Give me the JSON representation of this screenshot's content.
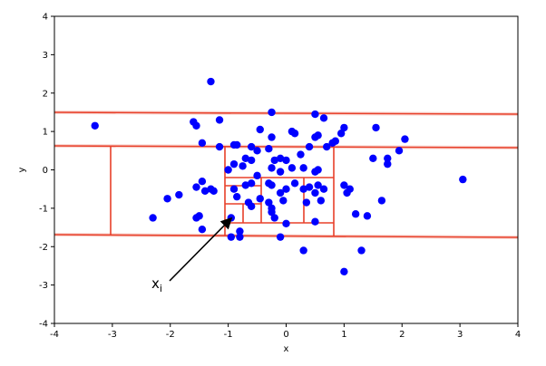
{
  "chart_data": {
    "type": "scatter",
    "x_label": "x",
    "y_label": "y",
    "annotation": {
      "text": "x",
      "subscript": "i"
    },
    "color": "#0000ff",
    "xlim": [
      -4,
      4
    ],
    "ylim": [
      -4,
      4
    ],
    "xticks": [
      -4,
      -3,
      -2,
      -1,
      0,
      1,
      2,
      3,
      4
    ],
    "yticks": [
      -4,
      -3,
      -2,
      -1,
      0,
      1,
      2,
      3,
      4
    ],
    "x": [
      -1.3,
      -3.3,
      -0.25,
      0.5,
      0.65,
      -1.6,
      -1.55,
      -1.15,
      1.0,
      0.95,
      1.55,
      -0.45,
      0.1,
      0.15,
      0.55,
      0.5,
      -0.25,
      0.85,
      0.8,
      2.05,
      1.95,
      -1.45,
      -1.15,
      -0.85,
      -0.9,
      -0.6,
      -0.3,
      -0.5,
      0.25,
      0.4,
      0.7,
      1.75,
      1.5,
      1.75,
      -0.7,
      -0.6,
      -0.9,
      -0.75,
      -0.2,
      -0.1,
      0.0,
      -0.25,
      -0.1,
      0.1,
      0.3,
      0.55,
      0.5,
      -1.0,
      -0.5,
      -1.45,
      -1.55,
      -1.3,
      -1.4,
      -1.25,
      -1.85,
      -2.05,
      -2.3,
      -1.5,
      -1.55,
      -1.45,
      -0.6,
      -0.7,
      -0.9,
      -0.25,
      -0.3,
      0.15,
      0.0,
      0.3,
      0.4,
      0.55,
      0.5,
      0.65,
      1.0,
      1.1,
      1.05,
      -0.85,
      -0.65,
      -0.45,
      -0.1,
      -0.05,
      -0.3,
      -0.25,
      -0.25,
      0.35,
      -0.6,
      -0.95,
      -0.2,
      0.0,
      0.5,
      1.65,
      1.2,
      1.4,
      -0.1,
      -0.95,
      -0.8,
      -0.8,
      0.3,
      1.3,
      1.0,
      3.05,
      0.6
    ],
    "y": [
      2.3,
      1.15,
      1.5,
      1.45,
      1.35,
      1.25,
      1.15,
      1.3,
      1.1,
      0.95,
      1.1,
      1.05,
      1.0,
      0.95,
      0.9,
      0.85,
      0.85,
      0.75,
      0.7,
      0.8,
      0.5,
      0.7,
      0.6,
      0.65,
      0.65,
      0.6,
      0.55,
      0.5,
      0.4,
      0.6,
      0.6,
      0.3,
      0.3,
      0.15,
      0.3,
      0.25,
      0.15,
      0.1,
      0.25,
      0.3,
      0.25,
      0.05,
      -0.05,
      0.05,
      0.05,
      0.0,
      -0.05,
      0.0,
      -0.15,
      -0.3,
      -0.45,
      -0.5,
      -0.55,
      -0.55,
      -0.65,
      -0.75,
      -1.25,
      -1.2,
      -1.25,
      -1.55,
      -0.35,
      -0.4,
      -0.5,
      -0.4,
      -0.35,
      -0.35,
      -0.5,
      -0.5,
      -0.45,
      -0.4,
      -0.6,
      -0.5,
      -0.4,
      -0.5,
      -0.6,
      -0.7,
      -0.85,
      -0.75,
      -0.6,
      -0.8,
      -0.85,
      -1.0,
      -1.1,
      -0.85,
      -0.95,
      -1.25,
      -1.25,
      -1.4,
      -1.35,
      -0.8,
      -1.15,
      -1.2,
      -1.75,
      -1.75,
      -1.75,
      -1.6,
      -2.1,
      -2.1,
      -2.65,
      -0.25,
      -0.8
    ]
  }
}
